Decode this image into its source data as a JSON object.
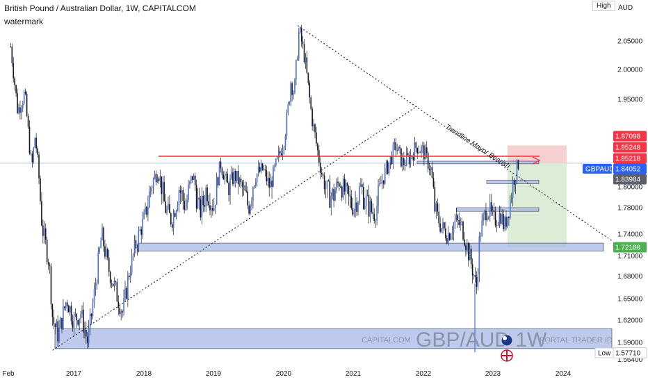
{
  "header": {
    "title": "British Pound / Australian Dollar, 1W, CAPITALCOM",
    "subtitle": "watermark"
  },
  "axis": {
    "currency": "AUD",
    "high_label": "High",
    "low_label": "Low"
  },
  "watermark": {
    "broker": "CAPITALCOM",
    "symbol": "GBP/AUD 1W",
    "portal": "PORTAL TRADER ID"
  },
  "annotations": {
    "trendline_label": "Trendline Mayor Bearish"
  },
  "colors": {
    "candle_body": "#4a6fd8",
    "zone_fill": "#a9b9e6",
    "zone_stroke": "#1e2a4a",
    "resistance_line": "#f23645",
    "target_fill": "#d9ead3",
    "stop_fill": "#f4c7c9",
    "price_badge": "#2962ff",
    "green_badge": "#4caf50",
    "red_badge": "#f23645",
    "grey_badge": "#5d606b"
  },
  "chart_data": {
    "type": "candlestick",
    "symbol": "GBPAUD",
    "timeframe": "1W",
    "y_axis": {
      "ticks": [
        "2.05000",
        "2.00000",
        "1.95000",
        "1.80000",
        "1.78000",
        "1.74000",
        "1.71000",
        "1.68000",
        "1.65000",
        "1.62000",
        "1.59000",
        "1.56400"
      ],
      "range": [
        1.562,
        2.095
      ]
    },
    "x_axis": {
      "ticks": [
        "Feb",
        "2017",
        "2018",
        "2019",
        "2020",
        "2021",
        "2022",
        "2023",
        "2024"
      ]
    },
    "price_labels": [
      {
        "value": "1.87098",
        "kind": "red"
      },
      {
        "value": "1.85248",
        "kind": "red"
      },
      {
        "value": "1.85218",
        "kind": "red"
      },
      {
        "value": "1.84052",
        "kind": "symbol",
        "name": "GBPAUD"
      },
      {
        "value": "1.83984",
        "kind": "grey"
      },
      {
        "value": "1.72188",
        "kind": "green"
      },
      {
        "value": "1.57710",
        "kind": "low"
      }
    ],
    "price_path": [
      [
        2016.1,
        2.04
      ],
      [
        2016.2,
        1.93
      ],
      [
        2016.3,
        1.96
      ],
      [
        2016.4,
        1.83
      ],
      [
        2016.45,
        1.89
      ],
      [
        2016.55,
        1.75
      ],
      [
        2016.65,
        1.7
      ],
      [
        2016.7,
        1.62
      ],
      [
        2016.78,
        1.6
      ],
      [
        2016.9,
        1.65
      ],
      [
        2017.0,
        1.62
      ],
      [
        2017.1,
        1.63
      ],
      [
        2017.2,
        1.59
      ],
      [
        2017.3,
        1.66
      ],
      [
        2017.4,
        1.74
      ],
      [
        2017.5,
        1.69
      ],
      [
        2017.6,
        1.66
      ],
      [
        2017.7,
        1.63
      ],
      [
        2017.8,
        1.69
      ],
      [
        2017.9,
        1.73
      ],
      [
        2018.0,
        1.76
      ],
      [
        2018.1,
        1.8
      ],
      [
        2018.2,
        1.83
      ],
      [
        2018.3,
        1.78
      ],
      [
        2018.4,
        1.76
      ],
      [
        2018.5,
        1.8
      ],
      [
        2018.6,
        1.78
      ],
      [
        2018.7,
        1.82
      ],
      [
        2018.8,
        1.77
      ],
      [
        2018.9,
        1.8
      ],
      [
        2019.0,
        1.78
      ],
      [
        2019.1,
        1.84
      ],
      [
        2019.2,
        1.8
      ],
      [
        2019.3,
        1.82
      ],
      [
        2019.4,
        1.8
      ],
      [
        2019.5,
        1.78
      ],
      [
        2019.6,
        1.82
      ],
      [
        2019.7,
        1.83
      ],
      [
        2019.8,
        1.8
      ],
      [
        2019.9,
        1.84
      ],
      [
        2020.0,
        1.88
      ],
      [
        2020.05,
        1.92
      ],
      [
        2020.1,
        1.98
      ],
      [
        2020.15,
        1.96
      ],
      [
        2020.22,
        2.07
      ],
      [
        2020.3,
        2.02
      ],
      [
        2020.4,
        1.92
      ],
      [
        2020.5,
        1.85
      ],
      [
        2020.55,
        1.82
      ],
      [
        2020.6,
        1.8
      ],
      [
        2020.7,
        1.79
      ],
      [
        2020.8,
        1.81
      ],
      [
        2020.9,
        1.79
      ],
      [
        2021.0,
        1.78
      ],
      [
        2021.1,
        1.8
      ],
      [
        2021.2,
        1.78
      ],
      [
        2021.3,
        1.77
      ],
      [
        2021.4,
        1.81
      ],
      [
        2021.5,
        1.84
      ],
      [
        2021.6,
        1.87
      ],
      [
        2021.7,
        1.84
      ],
      [
        2021.8,
        1.85
      ],
      [
        2021.9,
        1.87
      ],
      [
        2022.0,
        1.86
      ],
      [
        2022.1,
        1.83
      ],
      [
        2022.15,
        1.78
      ],
      [
        2022.25,
        1.75
      ],
      [
        2022.35,
        1.74
      ],
      [
        2022.45,
        1.76
      ],
      [
        2022.55,
        1.75
      ],
      [
        2022.65,
        1.71
      ],
      [
        2022.72,
        1.68
      ],
      [
        2022.75,
        1.66
      ],
      [
        2022.8,
        1.74
      ],
      [
        2022.9,
        1.78
      ],
      [
        2023.0,
        1.76
      ],
      [
        2023.1,
        1.77
      ],
      [
        2023.15,
        1.75
      ],
      [
        2023.22,
        1.78
      ],
      [
        2023.28,
        1.81
      ],
      [
        2023.35,
        1.84
      ]
    ],
    "drawings": {
      "resistance_level": 1.8525,
      "support_zone": [
        1.7168,
        1.7275
      ],
      "demand_zone": [
        1.5805,
        1.6085
      ],
      "upper_trendline": [
        [
          2020.2,
          2.077
        ],
        [
          2024.7,
          1.73
        ]
      ],
      "lower_trendline": [
        [
          2016.7,
          1.578
        ],
        [
          2021.9,
          1.938
        ]
      ],
      "stop_zone": [
        1.841,
        1.8709
      ],
      "target_zone": [
        1.7219,
        1.841
      ]
    }
  }
}
